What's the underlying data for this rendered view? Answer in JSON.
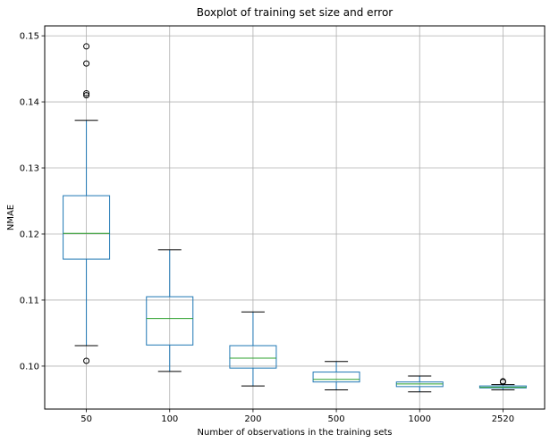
{
  "chart_data": {
    "type": "boxplot",
    "title": "Boxplot of training set size and error",
    "xlabel": "Number of observations in the training sets",
    "ylabel": "NMAE",
    "categories": [
      "50",
      "100",
      "200",
      "500",
      "1000",
      "2520"
    ],
    "ylim": [
      0.0935,
      0.1515
    ],
    "yticks": [
      0.1,
      0.11,
      0.12,
      0.13,
      0.14,
      0.15
    ],
    "ytick_labels": [
      "0.10",
      "0.11",
      "0.12",
      "0.13",
      "0.14",
      "0.15"
    ],
    "grid": true,
    "boxes": [
      {
        "category": "50",
        "whisker_low": 0.1031,
        "q1": 0.1162,
        "median": 0.1201,
        "q3": 0.1258,
        "whisker_high": 0.1372,
        "outliers": [
          0.1484,
          0.1458,
          0.1413,
          0.141,
          0.1008
        ]
      },
      {
        "category": "100",
        "whisker_low": 0.0992,
        "q1": 0.1032,
        "median": 0.1072,
        "q3": 0.1105,
        "whisker_high": 0.1176,
        "outliers": []
      },
      {
        "category": "200",
        "whisker_low": 0.097,
        "q1": 0.0997,
        "median": 0.1012,
        "q3": 0.1031,
        "whisker_high": 0.1082,
        "outliers": []
      },
      {
        "category": "500",
        "whisker_low": 0.0964,
        "q1": 0.0976,
        "median": 0.098,
        "q3": 0.0991,
        "whisker_high": 0.1007,
        "outliers": []
      },
      {
        "category": "1000",
        "whisker_low": 0.0961,
        "q1": 0.0969,
        "median": 0.0973,
        "q3": 0.0976,
        "whisker_high": 0.0985,
        "outliers": []
      },
      {
        "category": "2520",
        "whisker_low": 0.0964,
        "q1": 0.0967,
        "median": 0.0968,
        "q3": 0.097,
        "whisker_high": 0.0972,
        "outliers": [
          0.0977,
          0.0976
        ]
      }
    ],
    "colors": {
      "box": "#1f77b4",
      "median": "#2ca02c",
      "whisker": "#000000",
      "grid": "#b0b0b0",
      "outlier": "#000000"
    }
  }
}
